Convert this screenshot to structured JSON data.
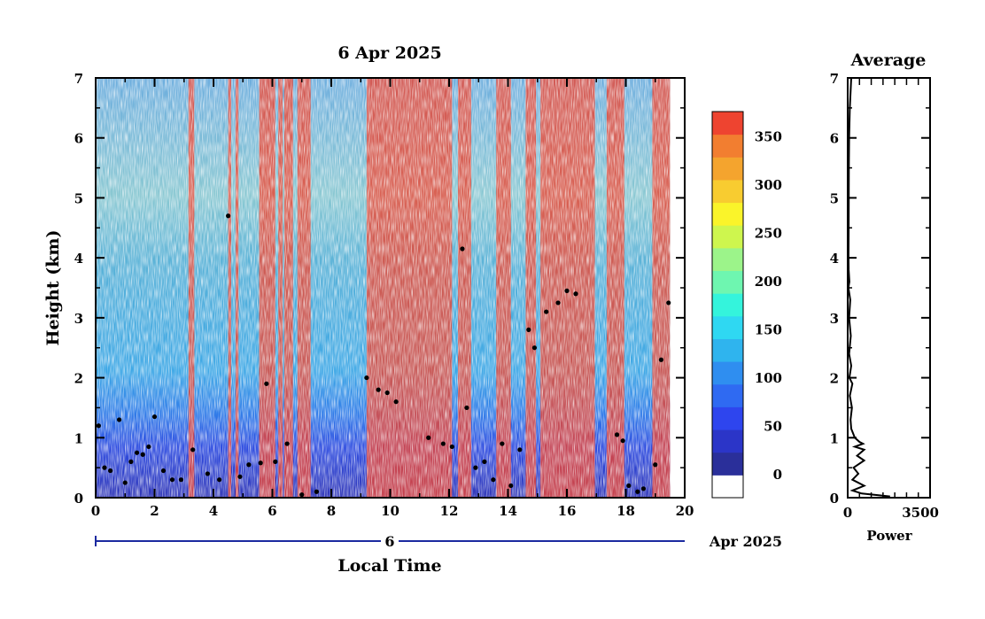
{
  "chart_data": [
    {
      "type": "heatmap",
      "title": "6 Apr 2025",
      "xlabel": "Local Time",
      "ylabel": "Height (km)",
      "xlim": [
        0,
        20
      ],
      "ylim": [
        0,
        7
      ],
      "x_ticks": [
        "0",
        "2",
        "4",
        "6",
        "8",
        "10",
        "12",
        "14",
        "16",
        "18",
        "20"
      ],
      "y_ticks": [
        "0",
        "1",
        "2",
        "3",
        "4",
        "5",
        "6",
        "7"
      ],
      "date_day": "6",
      "date_month": "Apr 2025",
      "data_extent_hours": [
        0,
        19.5
      ],
      "colorbar": {
        "ticks": [
          "0",
          "50",
          "100",
          "150",
          "200",
          "250",
          "300",
          "350"
        ],
        "range": [
          -25,
          375
        ],
        "colors": [
          "#ffffff",
          "#2a2f9a",
          "#2b35c8",
          "#2e45ee",
          "#2f6af2",
          "#2f8ef0",
          "#2fb4ee",
          "#2fd8f2",
          "#34f4dc",
          "#6ef6b0",
          "#9cf48a",
          "#cef64e",
          "#faf42a",
          "#f8cc30",
          "#f4a42e",
          "#f27e30",
          "#ee4430"
        ]
      },
      "high_signal_columns_hours": [
        [
          3.15,
          3.35
        ],
        [
          4.5,
          4.6
        ],
        [
          4.75,
          4.85
        ],
        [
          5.55,
          6.1
        ],
        [
          6.2,
          6.35
        ],
        [
          6.4,
          6.7
        ],
        [
          6.85,
          7.3
        ],
        [
          9.2,
          12.1
        ],
        [
          12.3,
          12.75
        ],
        [
          13.6,
          14.1
        ],
        [
          14.6,
          14.95
        ],
        [
          15.1,
          16.95
        ],
        [
          17.35,
          17.95
        ],
        [
          18.9,
          19.5
        ]
      ],
      "cloud_base_points": [
        [
          0.1,
          1.2
        ],
        [
          0.3,
          0.5
        ],
        [
          0.5,
          0.45
        ],
        [
          0.8,
          1.3
        ],
        [
          1.0,
          0.25
        ],
        [
          1.2,
          0.6
        ],
        [
          1.4,
          0.75
        ],
        [
          1.6,
          0.72
        ],
        [
          1.8,
          0.85
        ],
        [
          2.0,
          1.35
        ],
        [
          2.3,
          0.45
        ],
        [
          2.6,
          0.3
        ],
        [
          2.9,
          0.3
        ],
        [
          3.3,
          0.8
        ],
        [
          3.8,
          0.4
        ],
        [
          4.2,
          0.3
        ],
        [
          4.5,
          4.7
        ],
        [
          4.9,
          0.35
        ],
        [
          5.2,
          0.55
        ],
        [
          5.6,
          0.58
        ],
        [
          5.8,
          1.9
        ],
        [
          6.1,
          0.6
        ],
        [
          6.5,
          0.9
        ],
        [
          7.0,
          0.05
        ],
        [
          7.5,
          0.1
        ],
        [
          9.2,
          2.0
        ],
        [
          9.6,
          1.8
        ],
        [
          9.9,
          1.75
        ],
        [
          10.2,
          1.6
        ],
        [
          11.3,
          1.0
        ],
        [
          11.8,
          0.9
        ],
        [
          12.1,
          0.85
        ],
        [
          12.45,
          4.15
        ],
        [
          12.6,
          1.5
        ],
        [
          12.9,
          0.5
        ],
        [
          13.2,
          0.6
        ],
        [
          13.5,
          0.3
        ],
        [
          13.8,
          0.9
        ],
        [
          14.1,
          0.2
        ],
        [
          14.4,
          0.8
        ],
        [
          14.7,
          2.8
        ],
        [
          14.9,
          2.5
        ],
        [
          15.3,
          3.1
        ],
        [
          15.7,
          3.25
        ],
        [
          16.0,
          3.45
        ],
        [
          16.3,
          3.4
        ],
        [
          17.7,
          1.05
        ],
        [
          17.9,
          0.95
        ],
        [
          18.1,
          0.2
        ],
        [
          18.4,
          0.1
        ],
        [
          18.6,
          0.15
        ],
        [
          19.0,
          0.55
        ],
        [
          19.2,
          2.3
        ],
        [
          19.45,
          3.25
        ]
      ]
    },
    {
      "type": "line",
      "title": "Average",
      "xlabel": "Power",
      "ylabel": "",
      "xlim": [
        0,
        3500
      ],
      "ylim": [
        0,
        7
      ],
      "x_ticks": [
        "0",
        "3500"
      ],
      "y_ticks": [
        "0",
        "1",
        "2",
        "3",
        "4",
        "5",
        "6",
        "7"
      ],
      "points": [
        [
          150,
          7.0
        ],
        [
          90,
          6.5
        ],
        [
          60,
          6.0
        ],
        [
          50,
          5.5
        ],
        [
          45,
          5.0
        ],
        [
          40,
          4.5
        ],
        [
          35,
          4.0
        ],
        [
          40,
          3.8
        ],
        [
          70,
          3.6
        ],
        [
          30,
          3.5
        ],
        [
          110,
          3.3
        ],
        [
          60,
          3.0
        ],
        [
          130,
          2.7
        ],
        [
          60,
          2.4
        ],
        [
          150,
          2.2
        ],
        [
          70,
          2.0
        ],
        [
          200,
          1.9
        ],
        [
          90,
          1.7
        ],
        [
          180,
          1.5
        ],
        [
          120,
          1.3
        ],
        [
          150,
          1.15
        ],
        [
          300,
          1.0
        ],
        [
          500,
          0.93
        ],
        [
          650,
          0.9
        ],
        [
          300,
          0.85
        ],
        [
          700,
          0.8
        ],
        [
          400,
          0.7
        ],
        [
          700,
          0.62
        ],
        [
          250,
          0.5
        ],
        [
          450,
          0.4
        ],
        [
          200,
          0.3
        ],
        [
          700,
          0.2
        ],
        [
          200,
          0.12
        ],
        [
          600,
          0.07
        ],
        [
          1800,
          0.02
        ]
      ]
    }
  ]
}
